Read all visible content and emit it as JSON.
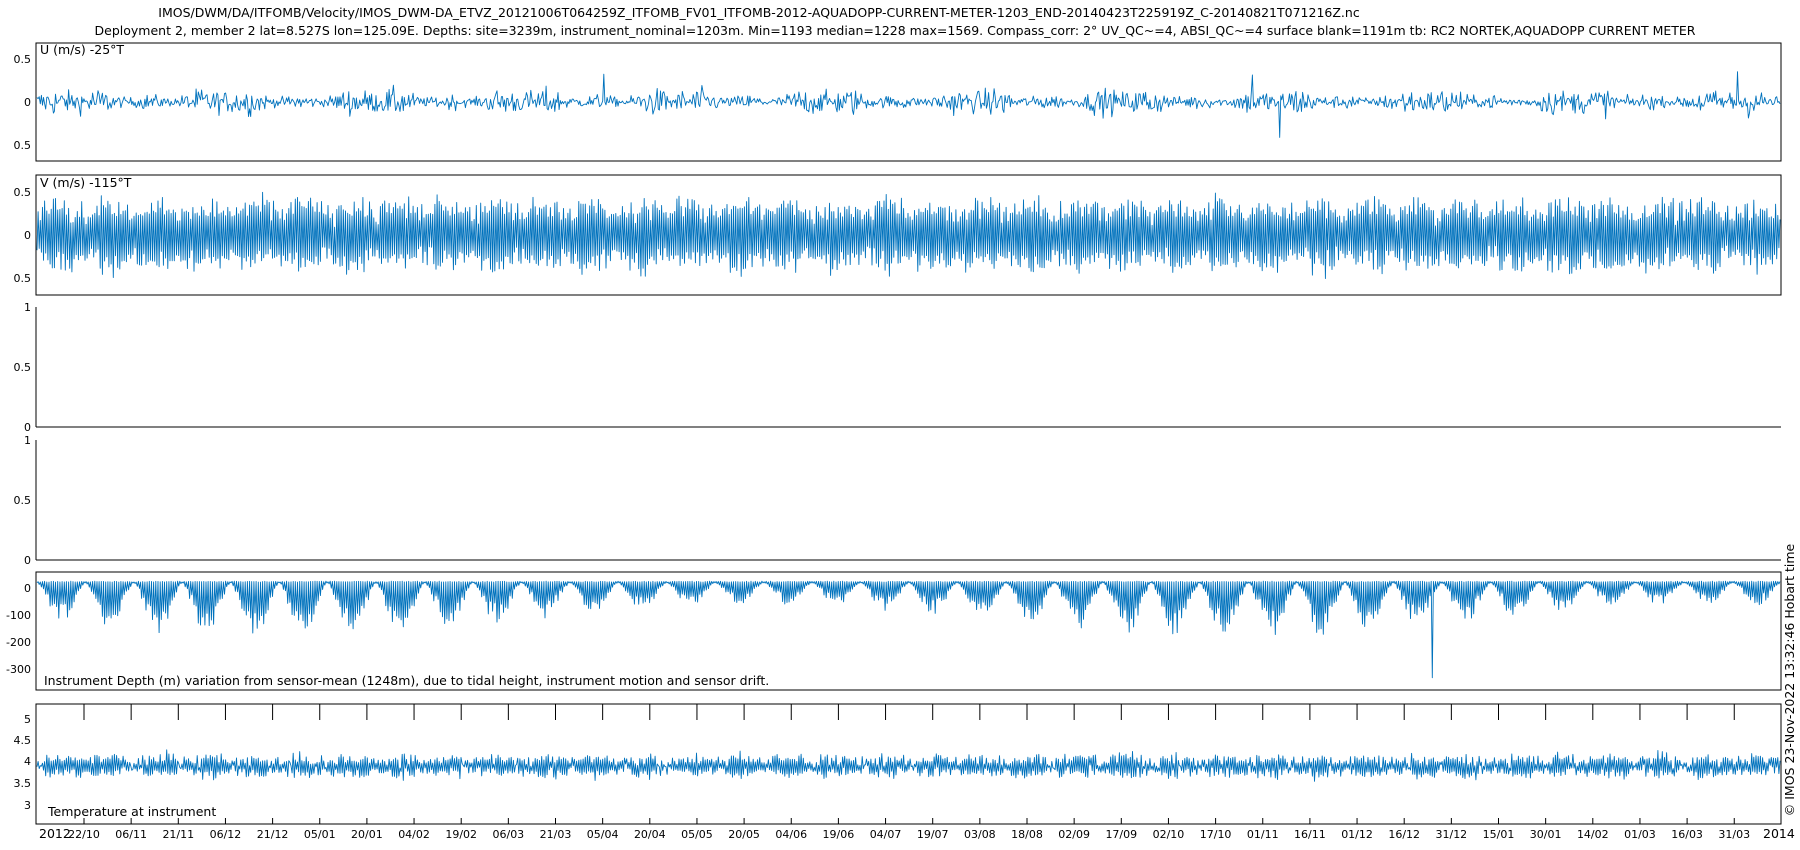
{
  "figure": {
    "title_line1": "IMOS/DWM/DA/ITFOMB/Velocity/IMOS_DWM-DA_ETVZ_20121006T064259Z_ITFOMB_FV01_ITFOMB-2012-AQUADOPP-CURRENT-METER-1203_END-20140423T225919Z_C-20140821T071216Z.nc",
    "title_line2": "Deployment 2, member 2 lat=8.527S lon=125.09E. Depths: site=3239m, instrument_nominal=1203m. Min=1193 median=1228 max=1569. Compass_corr: 2° UV_QC~=4, ABSI_QC~=4 surface blank=1191m tb: RC2 NORTEK,AQUADOPP CURRENT METER",
    "side_text": "© IMOS 23-Nov-2022 13:32:46 Hobart time",
    "year_start": "2012",
    "year_end": "2014",
    "date_ticks": [
      "22/10",
      "06/11",
      "21/11",
      "06/12",
      "21/12",
      "05/01",
      "20/01",
      "04/02",
      "19/02",
      "06/03",
      "21/03",
      "05/04",
      "20/04",
      "05/05",
      "20/05",
      "04/06",
      "19/06",
      "04/07",
      "19/07",
      "03/08",
      "18/08",
      "02/09",
      "17/09",
      "02/10",
      "17/10",
      "01/11",
      "16/11",
      "01/12",
      "16/12",
      "31/12",
      "15/01",
      "30/01",
      "14/02",
      "01/03",
      "16/03",
      "31/03"
    ],
    "line_color": "#0072BD"
  },
  "chart_data": [
    {
      "type": "line",
      "title": "U (m/s) -25°T",
      "ylim": [
        -0.7,
        0.7
      ],
      "yticks": [
        "0.5",
        "0",
        "0.5"
      ],
      "series": [
        {
          "name": "",
          "mean": 0.0,
          "noise_amplitude": 0.14,
          "envelope": [
            0.1,
            0.22
          ],
          "peaks": [
            0.3,
            -0.45,
            0.38,
            -0.35
          ]
        }
      ]
    },
    {
      "type": "line",
      "title": "V (m/s) -115°T",
      "ylim": [
        -0.7,
        0.7
      ],
      "yticks": [
        "0.5",
        "0",
        "0.5"
      ],
      "series": [
        {
          "name": "",
          "mean": 0.0,
          "tidal_amplitude": 0.35,
          "envelope": [
            0.2,
            0.6
          ],
          "spring_neap_cycles": 36
        }
      ]
    },
    {
      "type": "line",
      "title": "",
      "ylim": [
        0,
        1
      ],
      "yticks": [
        "1",
        "0.5",
        "0"
      ],
      "series": []
    },
    {
      "type": "line",
      "title": "",
      "ylim": [
        0,
        1
      ],
      "yticks": [
        "1",
        "0.5",
        "0"
      ],
      "series": []
    },
    {
      "type": "line",
      "title": "Instrument Depth (m) variation from sensor-mean (1248m), due to tidal height, instrument motion and sensor drift.",
      "ylim": [
        -360,
        25
      ],
      "yticks": [
        "0",
        "-100",
        "-200",
        "-300"
      ],
      "series": [
        {
          "name": "",
          "baseline": 0,
          "min": -320,
          "typical_min": -150
        }
      ]
    },
    {
      "type": "line",
      "title": "Temperature at instrument",
      "ylim": [
        2.6,
        5.4
      ],
      "yticks": [
        "5",
        "4.5",
        "4",
        "3.5",
        "3"
      ],
      "series": [
        {
          "name": "",
          "mean": 3.95,
          "range": [
            3.45,
            4.6
          ]
        }
      ]
    }
  ]
}
